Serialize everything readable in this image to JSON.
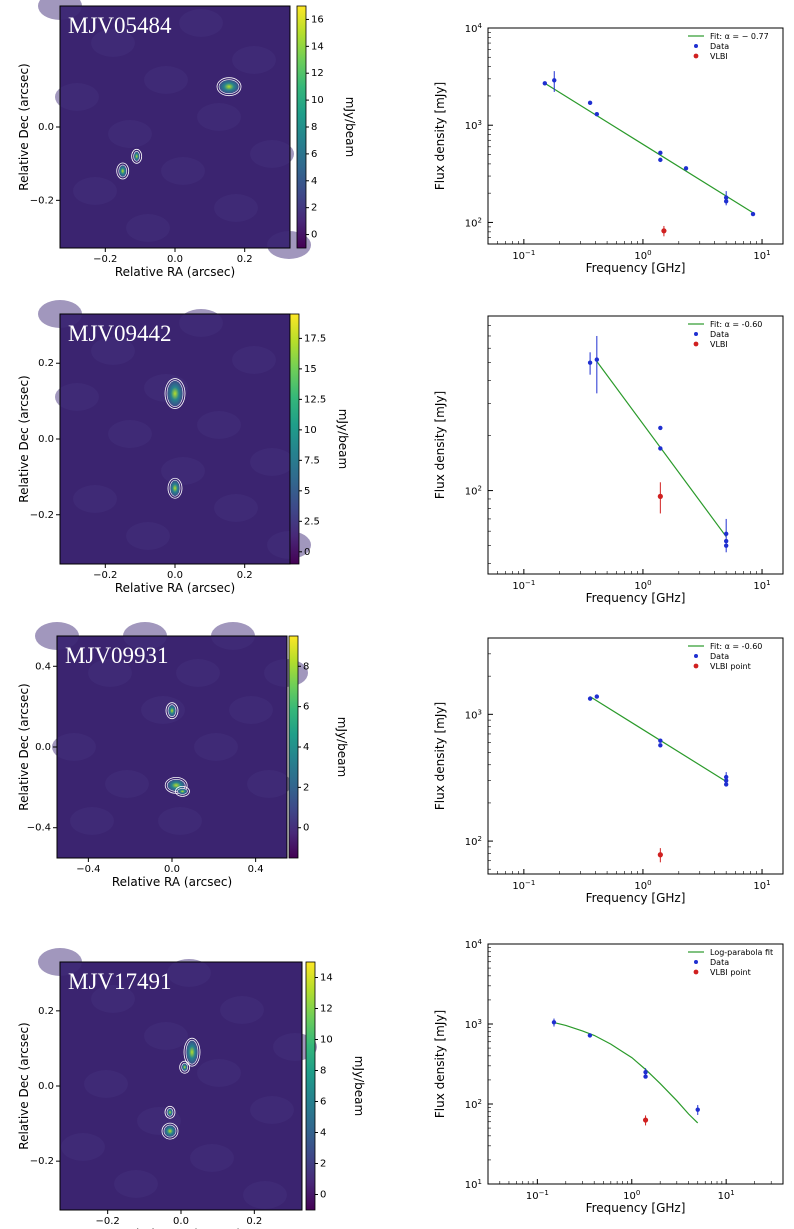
{
  "figures": [
    {
      "source": "MJV05484",
      "image": {
        "xlabel": "Relative RA (arcsec)",
        "ylabel": "Relative Dec (arcsec)",
        "colorbar_label": "mJy/beam",
        "x_ticks": [
          "−0.2",
          "0.0",
          "0.2"
        ],
        "y_ticks": [
          "0.0",
          "−0.2"
        ],
        "colorbar_ticks": [
          "16",
          "14",
          "12",
          "10",
          "8",
          "6",
          "4",
          "2",
          "0"
        ],
        "colorbar_range": [
          -1,
          17
        ],
        "extent": [
          -0.33,
          0.33,
          -0.33,
          0.33
        ]
      }
    },
    {
      "source": "MJV09442",
      "image": {
        "xlabel": "Relative RA (arcsec)",
        "ylabel": "Relative Dec (arcsec)",
        "colorbar_label": "mJy/beam",
        "x_ticks": [
          "−0.2",
          "0.0",
          "0.2"
        ],
        "y_ticks": [
          "0.2",
          "0.0",
          "−0.2"
        ],
        "colorbar_ticks": [
          "17.5",
          "15",
          "12.5",
          "10",
          "7.5",
          "5",
          "2.5",
          "0"
        ],
        "colorbar_range": [
          -1,
          19.5
        ],
        "extent": [
          -0.33,
          0.33,
          -0.33,
          0.33
        ]
      }
    },
    {
      "source": "MJV09931",
      "image": {
        "xlabel": "Relative RA (arcsec)",
        "ylabel": "Relative Dec (arcsec)",
        "colorbar_label": "mJy/beam",
        "x_ticks": [
          "−0.4",
          "0.0",
          "0.4"
        ],
        "y_ticks": [
          "0.4",
          "0.0",
          "−0.4"
        ],
        "colorbar_ticks": [
          "8",
          "6",
          "4",
          "2",
          "0"
        ],
        "colorbar_range": [
          -1.5,
          9.5
        ],
        "extent": [
          -0.55,
          0.55,
          -0.55,
          0.55
        ]
      }
    },
    {
      "source": "MJV17491",
      "image": {
        "xlabel": "Relative RA (arcsec)",
        "ylabel": "Relative Dec (arcsec)",
        "colorbar_label": "mJy/beam",
        "x_ticks": [
          "−0.2",
          "0.0",
          "0.2"
        ],
        "y_ticks": [
          "0.2",
          "0.0",
          "−0.2"
        ],
        "colorbar_ticks": [
          "14",
          "12",
          "10",
          "8",
          "6",
          "4",
          "2",
          "0"
        ],
        "colorbar_range": [
          -1,
          15
        ],
        "extent": [
          -0.33,
          0.33,
          -0.33,
          0.33
        ]
      }
    }
  ],
  "chart_data": [
    {
      "type": "scatter",
      "xlabel": "Frequency [GHz]",
      "ylabel": "Flux density [mJy]",
      "xscale": "log",
      "yscale": "log",
      "xlim": [
        0.05,
        15
      ],
      "ylim": [
        60,
        10000
      ],
      "x_ticks": [
        {
          "value": 0.1,
          "base": "10",
          "exp": "−1"
        },
        {
          "value": 1,
          "base": "10",
          "exp": "0"
        },
        {
          "value": 10,
          "base": "10",
          "exp": "1"
        }
      ],
      "y_ticks": [
        {
          "value": 100,
          "base": "10",
          "exp": "2"
        },
        {
          "value": 1000,
          "base": "10",
          "exp": "3"
        },
        {
          "value": 10000,
          "base": "10",
          "exp": "4"
        }
      ],
      "legend": [
        "Fit: α = − 0.77",
        "Data",
        "VLBI"
      ],
      "legend_position": "top-right",
      "fit": {
        "type": "power-law",
        "alpha": -0.77,
        "x": [
          0.15,
          8.4
        ],
        "y": [
          2700,
          126
        ]
      },
      "series": [
        {
          "name": "Data",
          "color": "#1f2fd0",
          "x": [
            0.15,
            0.18,
            0.36,
            0.41,
            1.4,
            1.4,
            2.3,
            5.0,
            5.0,
            8.4
          ],
          "y": [
            2700,
            2900,
            1700,
            1300,
            520,
            440,
            360,
            180,
            165,
            122
          ],
          "err": [
            0,
            700,
            0,
            0,
            0,
            0,
            0,
            30,
            0,
            0
          ]
        },
        {
          "name": "VLBI",
          "color": "#d02020",
          "x": [
            1.5
          ],
          "y": [
            82
          ],
          "err": [
            10
          ]
        }
      ]
    },
    {
      "type": "scatter",
      "xlabel": "Frequency [GHz]",
      "ylabel": "Flux density [mJy]",
      "xscale": "log",
      "yscale": "log",
      "xlim": [
        0.05,
        15
      ],
      "ylim": [
        35,
        900
      ],
      "x_ticks": [
        {
          "value": 0.1,
          "base": "10",
          "exp": "−1"
        },
        {
          "value": 1,
          "base": "10",
          "exp": "0"
        },
        {
          "value": 10,
          "base": "10",
          "exp": "1"
        }
      ],
      "y_ticks": [
        {
          "value": 100,
          "base": "10",
          "exp": "2"
        }
      ],
      "legend": [
        "Fit: α = -0.60",
        "Data",
        "VLBI"
      ],
      "legend_position": "top-right",
      "fit": {
        "type": "power-law",
        "alpha": -0.6,
        "x": [
          0.4,
          5.0
        ],
        "y": [
          520,
          56
        ]
      },
      "series": [
        {
          "name": "Data",
          "color": "#1f2fd0",
          "x": [
            0.36,
            0.41,
            1.4,
            1.4,
            5.0,
            5.0,
            5.0
          ],
          "y": [
            500,
            520,
            220,
            170,
            58,
            53,
            50
          ],
          "err": [
            70,
            180,
            0,
            0,
            12,
            0,
            0
          ]
        },
        {
          "name": "VLBI",
          "color": "#d02020",
          "x": [
            1.4
          ],
          "y": [
            93
          ],
          "err": [
            18
          ]
        }
      ]
    },
    {
      "type": "scatter",
      "xlabel": "Frequency [GHz]",
      "ylabel": "Flux density [mJy]",
      "xscale": "log",
      "yscale": "log",
      "xlim": [
        0.05,
        15
      ],
      "ylim": [
        55,
        4000
      ],
      "x_ticks": [
        {
          "value": 0.1,
          "base": "10",
          "exp": "−1"
        },
        {
          "value": 1,
          "base": "10",
          "exp": "0"
        },
        {
          "value": 10,
          "base": "10",
          "exp": "1"
        }
      ],
      "y_ticks": [
        {
          "value": 100,
          "base": "10",
          "exp": "2"
        },
        {
          "value": 1000,
          "base": "10",
          "exp": "3"
        }
      ],
      "legend": [
        "Fit: α = -0.60",
        "Data",
        "VLBI point"
      ],
      "legend_position": "top-right",
      "fit": {
        "type": "power-law",
        "alpha": -0.6,
        "x": [
          0.36,
          5.0
        ],
        "y": [
          1380,
          295
        ]
      },
      "series": [
        {
          "name": "Data",
          "color": "#1f2fd0",
          "x": [
            0.36,
            0.41,
            1.4,
            1.4,
            5.0,
            5.0,
            5.0
          ],
          "y": [
            1330,
            1380,
            620,
            570,
            320,
            300,
            280
          ],
          "err": [
            0,
            0,
            0,
            0,
            30,
            0,
            0
          ]
        },
        {
          "name": "VLBI point",
          "color": "#d02020",
          "x": [
            1.4
          ],
          "y": [
            78
          ],
          "err": [
            10
          ]
        }
      ]
    },
    {
      "type": "scatter",
      "xlabel": "Frequency [GHz]",
      "ylabel": "Flux density [mJy]",
      "xscale": "log",
      "yscale": "log",
      "xlim": [
        0.03,
        40
      ],
      "ylim": [
        10,
        10000
      ],
      "x_ticks": [
        {
          "value": 0.1,
          "base": "10",
          "exp": "−1"
        },
        {
          "value": 1,
          "base": "10",
          "exp": "0"
        },
        {
          "value": 10,
          "base": "10",
          "exp": "1"
        }
      ],
      "y_ticks": [
        {
          "value": 10,
          "base": "10",
          "exp": "1"
        },
        {
          "value": 100,
          "base": "10",
          "exp": "2"
        },
        {
          "value": 1000,
          "base": "10",
          "exp": "3"
        },
        {
          "value": 10000,
          "base": "10",
          "exp": "4"
        }
      ],
      "legend": [
        "Log-parabola fit",
        "Data",
        "VLBI point"
      ],
      "legend_position": "top-right",
      "fit": {
        "type": "log-parabola",
        "x": [
          0.15,
          0.2,
          0.3,
          0.4,
          0.6,
          0.8,
          1.0,
          1.4,
          2.0,
          3.0,
          4.0,
          5.0
        ],
        "y": [
          1040,
          960,
          820,
          720,
          560,
          450,
          380,
          270,
          180,
          110,
          75,
          58
        ]
      },
      "series": [
        {
          "name": "Data",
          "color": "#1f2fd0",
          "x": [
            0.15,
            0.36,
            1.4,
            1.4,
            5.0
          ],
          "y": [
            1050,
            720,
            250,
            220,
            85
          ],
          "err": [
            120,
            0,
            30,
            0,
            12
          ]
        },
        {
          "name": "VLBI point",
          "color": "#d02020",
          "x": [
            1.4
          ],
          "y": [
            63
          ],
          "err": [
            9
          ]
        }
      ]
    }
  ]
}
